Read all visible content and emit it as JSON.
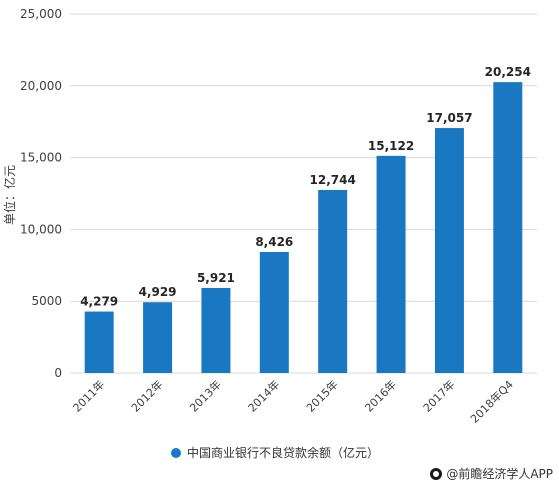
{
  "chart_data": {
    "type": "bar",
    "title": "",
    "xlabel": "",
    "ylabel": "单位：亿元",
    "ylim": [
      0,
      25000
    ],
    "yticks": [
      0,
      5000,
      10000,
      15000,
      20000,
      25000
    ],
    "ytick_labels": [
      "0",
      "5000",
      "10,000",
      "15,000",
      "20,000",
      "25,000"
    ],
    "grid": true,
    "legend_position": "bottom",
    "categories": [
      "2011年",
      "2012年",
      "2013年",
      "2014年",
      "2015年",
      "2016年",
      "2017年",
      "2018年Q4"
    ],
    "series": [
      {
        "name": "中国商业银行不良贷款余额（亿元）",
        "values": [
          4279,
          4929,
          5921,
          8426,
          12744,
          15122,
          17057,
          20254
        ],
        "value_labels": [
          "4,279",
          "4,929",
          "5,921",
          "8,426",
          "12,744",
          "15,122",
          "17,057",
          "20,254"
        ],
        "color": "#1a78c2"
      }
    ]
  },
  "credit": {
    "text": "@前瞻经济学人APP",
    "icon": "brand-logo-icon"
  },
  "colors": {
    "bar": "#1a78c2",
    "grid": "#d9d9d9",
    "axis_text": "#404040",
    "value_text": "#262626"
  }
}
